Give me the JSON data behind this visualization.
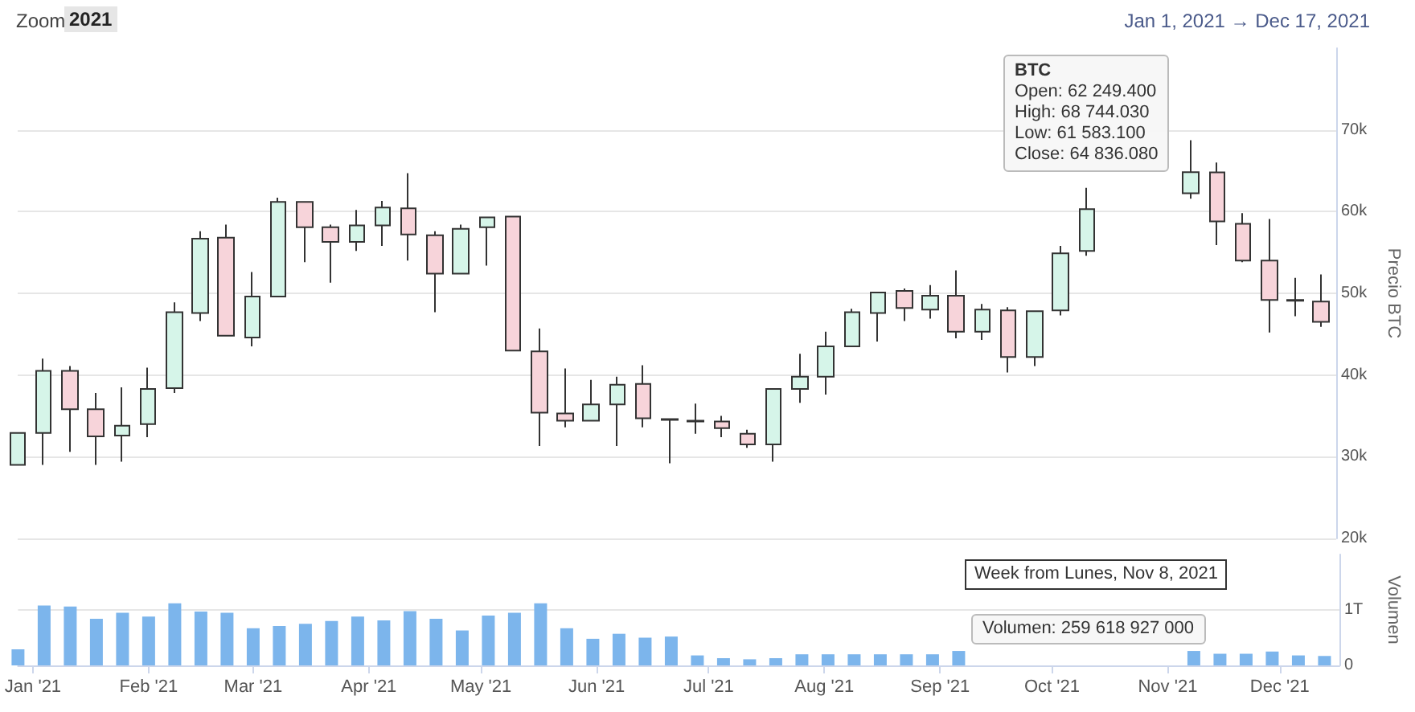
{
  "chart_data": [
    {
      "type": "candlestick",
      "ylabel": "Precio BTC",
      "x": [
        "2020-12-28",
        "2021-01-04",
        "2021-01-11",
        "2021-01-18",
        "2021-01-25",
        "2021-02-01",
        "2021-02-08",
        "2021-02-15",
        "2021-02-22",
        "2021-03-01",
        "2021-03-08",
        "2021-03-15",
        "2021-03-22",
        "2021-03-29",
        "2021-04-05",
        "2021-04-12",
        "2021-04-19",
        "2021-04-26",
        "2021-05-03",
        "2021-05-10",
        "2021-05-17",
        "2021-05-24",
        "2021-05-31",
        "2021-06-07",
        "2021-06-14",
        "2021-06-21",
        "2021-06-28",
        "2021-07-05",
        "2021-07-12",
        "2021-07-19",
        "2021-07-26",
        "2021-08-02",
        "2021-08-09",
        "2021-08-16",
        "2021-08-23",
        "2021-08-30",
        "2021-09-06",
        "2021-09-13",
        "2021-09-20",
        "2021-09-27",
        "2021-10-04",
        "2021-10-11",
        "2021-11-08",
        "2021-11-15",
        "2021-11-22",
        "2021-11-29",
        "2021-12-06",
        "2021-12-13"
      ],
      "ohlc": [
        [
          29000,
          32900,
          29000,
          32900
        ],
        [
          32900,
          42000,
          29000,
          40500
        ],
        [
          40500,
          41100,
          30600,
          35800
        ],
        [
          35800,
          37800,
          29000,
          32500
        ],
        [
          32600,
          38500,
          29400,
          33800
        ],
        [
          34000,
          40900,
          32400,
          38300
        ],
        [
          38400,
          48900,
          37800,
          47700
        ],
        [
          47600,
          57600,
          46600,
          56700
        ],
        [
          56800,
          58400,
          44800,
          44800
        ],
        [
          44600,
          52600,
          43500,
          49600
        ],
        [
          49600,
          61700,
          49600,
          61200
        ],
        [
          61200,
          61200,
          53800,
          58100
        ],
        [
          58100,
          58400,
          51300,
          56300
        ],
        [
          56300,
          60200,
          55200,
          58300
        ],
        [
          58300,
          61300,
          55800,
          60500
        ],
        [
          60400,
          64700,
          54000,
          57200
        ],
        [
          57100,
          57600,
          47700,
          52400
        ],
        [
          52400,
          58400,
          52400,
          57900
        ],
        [
          58100,
          59300,
          53400,
          59300
        ],
        [
          59400,
          59400,
          43000,
          43000
        ],
        [
          42900,
          45700,
          31300,
          35400
        ],
        [
          35300,
          40800,
          33600,
          34400
        ],
        [
          34400,
          39400,
          34400,
          36400
        ],
        [
          36400,
          39800,
          31300,
          38800
        ],
        [
          38900,
          41200,
          33600,
          34700
        ],
        [
          34600,
          34600,
          29200,
          34500
        ],
        [
          34300,
          36500,
          32800,
          34400
        ],
        [
          34300,
          35000,
          32400,
          33500
        ],
        [
          32800,
          33300,
          31100,
          31500
        ],
        [
          31500,
          38300,
          29400,
          38300
        ],
        [
          38300,
          42600,
          36600,
          39800
        ],
        [
          39800,
          45300,
          37600,
          43500
        ],
        [
          43500,
          48100,
          43500,
          47700
        ],
        [
          47600,
          50100,
          44100,
          50100
        ],
        [
          50300,
          50600,
          46600,
          48200
        ],
        [
          48000,
          51000,
          46900,
          49700
        ],
        [
          49700,
          52800,
          44500,
          45300
        ],
        [
          45300,
          48700,
          44300,
          48000
        ],
        [
          47900,
          48300,
          40300,
          42200
        ],
        [
          42200,
          47800,
          41100,
          47800
        ],
        [
          47900,
          55800,
          47300,
          54900
        ],
        [
          55200,
          62900,
          54600,
          60300
        ],
        [
          62249.4,
          68744.03,
          61583.1,
          64836.08
        ],
        [
          64800,
          66000,
          55900,
          58800
        ],
        [
          58500,
          59800,
          53800,
          54000
        ],
        [
          54000,
          59100,
          45200,
          49200
        ],
        [
          49200,
          51900,
          47200,
          49100
        ],
        [
          49000,
          52300,
          45900,
          46500
        ]
      ],
      "colors": [
        "#d6f5e9",
        "#d6f5e9",
        "#f7d4da",
        "#f7d4da",
        "#d6f5e9",
        "#d6f5e9",
        "#d6f5e9",
        "#d6f5e9",
        "#f7d4da",
        "#d6f5e9",
        "#d6f5e9",
        "#f7d4da",
        "#f7d4da",
        "#d6f5e9",
        "#d6f5e9",
        "#f7d4da",
        "#f7d4da",
        "#d6f5e9",
        "#d6f5e9",
        "#f7d4da",
        "#f7d4da",
        "#f7d4da",
        "#d6f5e9",
        "#d6f5e9",
        "#f7d4da",
        "#f7d4da",
        "#d6f5e9",
        "#f7d4da",
        "#f7d4da",
        "#d6f5e9",
        "#d6f5e9",
        "#d6f5e9",
        "#d6f5e9",
        "#d6f5e9",
        "#f7d4da",
        "#d6f5e9",
        "#f7d4da",
        "#d6f5e9",
        "#f7d4da",
        "#d6f5e9",
        "#d6f5e9",
        "#d6f5e9",
        "#d6f5e9",
        "#f7d4da",
        "#f7d4da",
        "#f7d4da",
        "#f7d4da",
        "#f7d4da"
      ],
      "xlim": [
        "2020-12-28",
        "2021-12-17"
      ],
      "ylim": [
        20000,
        80000
      ],
      "yticks": [
        {
          "value": 20000,
          "label": "20k"
        },
        {
          "value": 30000,
          "label": "30k"
        },
        {
          "value": 40000,
          "label": "40k"
        },
        {
          "value": 50000,
          "label": "50k"
        },
        {
          "value": 60000,
          "label": "60k"
        },
        {
          "value": 70000,
          "label": "70k"
        }
      ],
      "tick_labels": "y",
      "grid": "y",
      "annotations": [
        "Zoom",
        "2021",
        "Jan 1, 2021 → Dec 17, 2021",
        "BTC",
        "Open: 62 249.400",
        "High: 68 744.030",
        "Low: 61 583.100",
        "Close: 64 836.080"
      ]
    },
    {
      "type": "bar",
      "ylabel": "Volumen",
      "color": "#7cb5ec",
      "x": [
        "2020-12-28",
        "2021-01-04",
        "2021-01-11",
        "2021-01-18",
        "2021-01-25",
        "2021-02-01",
        "2021-02-08",
        "2021-02-15",
        "2021-02-22",
        "2021-03-01",
        "2021-03-08",
        "2021-03-15",
        "2021-03-22",
        "2021-03-29",
        "2021-04-05",
        "2021-04-12",
        "2021-04-19",
        "2021-04-26",
        "2021-05-03",
        "2021-05-10",
        "2021-05-17",
        "2021-05-24",
        "2021-05-31",
        "2021-06-07",
        "2021-06-14",
        "2021-06-21",
        "2021-06-28",
        "2021-07-05",
        "2021-07-12",
        "2021-07-19",
        "2021-07-26",
        "2021-08-02",
        "2021-08-09",
        "2021-08-16",
        "2021-08-23",
        "2021-08-30",
        "2021-09-06",
        "2021-11-08",
        "2021-11-15",
        "2021-11-22",
        "2021-11-29",
        "2021-12-06",
        "2021-12-13"
      ],
      "values": [
        290000000000,
        1080000000000,
        1060000000000,
        840000000000,
        950000000000,
        880000000000,
        1120000000000,
        970000000000,
        950000000000,
        670000000000,
        710000000000,
        750000000000,
        800000000000,
        880000000000,
        810000000000,
        980000000000,
        840000000000,
        630000000000,
        900000000000,
        950000000000,
        1120000000000,
        670000000000,
        480000000000,
        570000000000,
        500000000000,
        520000000000,
        180000000000,
        130000000000,
        110000000000,
        130000000000,
        200000000000,
        200000000000,
        200000000000,
        200000000000,
        200000000000,
        200000000000,
        260000000000,
        260000000000,
        210000000000,
        210000000000,
        250000000000,
        180000000000,
        170000000000
      ],
      "xlim": [
        "2020-12-28",
        "2021-12-17"
      ],
      "xticks": [
        {
          "value": "2021-01-01",
          "label": "Jan '21"
        },
        {
          "value": "2021-02-01",
          "label": "Feb '21"
        },
        {
          "value": "2021-03-01",
          "label": "Mar '21"
        },
        {
          "value": "2021-04-01",
          "label": "Apr '21"
        },
        {
          "value": "2021-05-01",
          "label": "May '21"
        },
        {
          "value": "2021-06-01",
          "label": "Jun '21"
        },
        {
          "value": "2021-07-01",
          "label": "Jul '21"
        },
        {
          "value": "2021-08-01",
          "label": "Aug '21"
        },
        {
          "value": "2021-09-01",
          "label": "Sep '21"
        },
        {
          "value": "2021-10-01",
          "label": "Oct '21"
        },
        {
          "value": "2021-11-01",
          "label": "Nov '21"
        },
        {
          "value": "2021-12-01",
          "label": "Dec '21"
        }
      ],
      "ylim": [
        0,
        2000000000000
      ],
      "yticks": [
        0,
        {
          "value": 1000000000000,
          "label": "1T"
        }
      ],
      "grid": "y",
      "annotations": [
        "Volumen: 259 618 927 000",
        "Week from Lunes, Nov 8, 2021"
      ]
    }
  ]
}
